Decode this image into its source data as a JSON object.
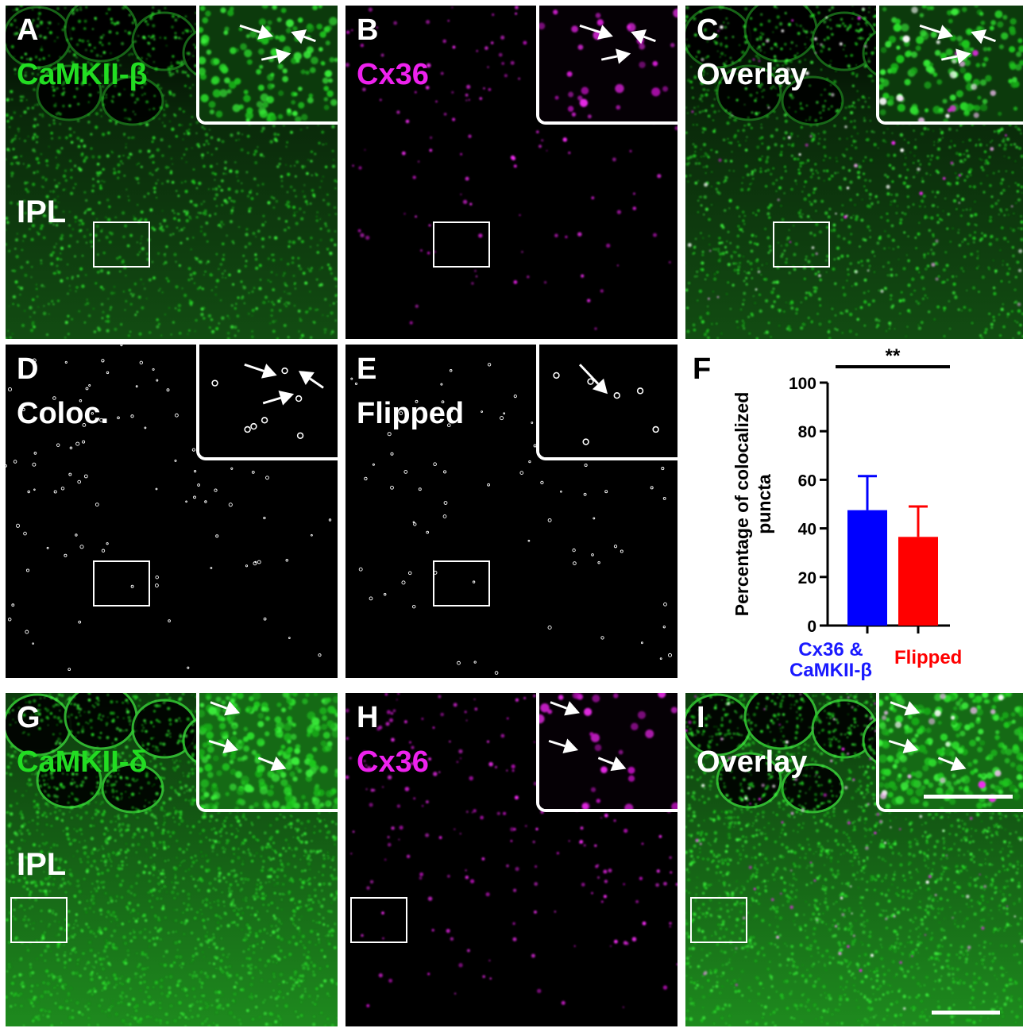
{
  "panels": {
    "A": {
      "letter": "A",
      "label": "CaMKII-β",
      "label_color": "#22dd22",
      "region": "IPL"
    },
    "B": {
      "letter": "B",
      "label": "Cx36",
      "label_color": "#ee22ee"
    },
    "C": {
      "letter": "C",
      "label": "Overlay",
      "label_color": "#ffffff"
    },
    "D": {
      "letter": "D",
      "label": "Coloc.",
      "label_color": "#ffffff"
    },
    "E": {
      "letter": "E",
      "label": "Flipped",
      "label_color": "#ffffff"
    },
    "F": {
      "letter": "F"
    },
    "G": {
      "letter": "G",
      "label": "CaMKII-δ",
      "label_color": "#22dd22",
      "region": "IPL"
    },
    "H": {
      "letter": "H",
      "label": "Cx36",
      "label_color": "#ee22ee"
    },
    "I": {
      "letter": "I",
      "label": "Overlay",
      "label_color": "#ffffff"
    }
  },
  "colors": {
    "green_channel": "#22dd22",
    "magenta_channel": "#ee22ee",
    "bar_blue": "#0000ff",
    "bar_red": "#ff0000"
  },
  "chart_data": {
    "type": "bar",
    "categories": [
      "Cx36 & CaMKII-β",
      "Flipped"
    ],
    "category_lines": [
      [
        "Cx36 &",
        "CaMKII-β"
      ],
      [
        "Flipped"
      ]
    ],
    "category_colors": [
      "#1a1aff",
      "#ff0000"
    ],
    "values": [
      47.5,
      36.5
    ],
    "errors": [
      14,
      12.5
    ],
    "ylabel": "Percentage of colocalized puncta",
    "ylabel_lines": [
      "Percentage of colocalized",
      "puncta"
    ],
    "ylim": [
      0,
      100
    ],
    "yticks": [
      0,
      20,
      40,
      60,
      80,
      100
    ],
    "significance": "**",
    "grid": false
  }
}
